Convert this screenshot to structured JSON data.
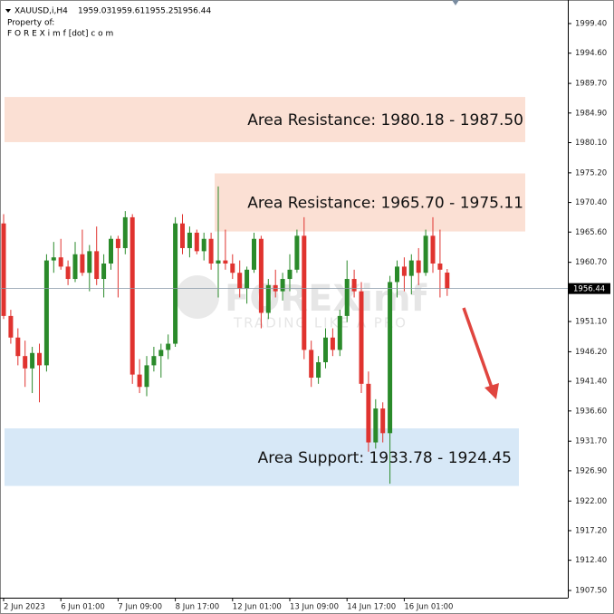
{
  "chart_data": {
    "type": "candlestick",
    "symbol": "XAUUSD,i,H4",
    "property_label": "Property of:",
    "property_value": "F O R E X i m f [dot] c o m",
    "watermark": {
      "logo": "FOREXimf",
      "tagline": "TRADING LIKE A PRO"
    },
    "up_color": "#2a8a2a",
    "down_color": "#e0332f",
    "categories": [
      "2 Jun 2023",
      null,
      null,
      null,
      null,
      null,
      null,
      null,
      "6 Jun 01:00",
      null,
      null,
      null,
      null,
      null,
      null,
      null,
      "7 Jun 09:00",
      null,
      null,
      null,
      null,
      null,
      null,
      null,
      "8 Jun 17:00",
      null,
      null,
      null,
      null,
      null,
      null,
      null,
      "12 Jun 01:00",
      null,
      null,
      null,
      null,
      null,
      null,
      null,
      "13 Jun 09:00",
      null,
      null,
      null,
      null,
      null,
      null,
      null,
      "14 Jun 17:00",
      null,
      null,
      null,
      null,
      null,
      null,
      null,
      "16 Jun 01:00",
      null,
      null,
      null,
      null,
      null,
      null
    ],
    "ohlc": [
      [
        1967.0,
        1968.5,
        1951.5,
        1952.0
      ],
      [
        1952.0,
        1953.0,
        1947.5,
        1948.5
      ],
      [
        1948.5,
        1950.0,
        1944.0,
        1945.5
      ],
      [
        1945.5,
        1948.0,
        1940.5,
        1943.5
      ],
      [
        1943.5,
        1947.0,
        1939.5,
        1946.0
      ],
      [
        1946.0,
        1947.5,
        1938.0,
        1944.0
      ],
      [
        1944.0,
        1962.0,
        1943.0,
        1961.0
      ],
      [
        1961.0,
        1964.0,
        1959.0,
        1961.5
      ],
      [
        1961.5,
        1964.5,
        1959.5,
        1960.0
      ],
      [
        1960.0,
        1961.0,
        1957.0,
        1958.0
      ],
      [
        1958.0,
        1964.0,
        1957.5,
        1962.0
      ],
      [
        1962.0,
        1966.0,
        1958.5,
        1959.0
      ],
      [
        1959.0,
        1963.5,
        1956.0,
        1962.5
      ],
      [
        1962.5,
        1966.5,
        1957.0,
        1958.0
      ],
      [
        1958.0,
        1962.0,
        1955.0,
        1960.5
      ],
      [
        1960.5,
        1965.0,
        1959.5,
        1964.5
      ],
      [
        1964.5,
        1965.0,
        1955.0,
        1963.0
      ],
      [
        1963.0,
        1969.0,
        1962.0,
        1968.0
      ],
      [
        1968.0,
        1968.5,
        1941.0,
        1942.5
      ],
      [
        1942.5,
        1945.0,
        1939.5,
        1940.5
      ],
      [
        1940.5,
        1945.5,
        1939.0,
        1944.0
      ],
      [
        1944.0,
        1947.0,
        1943.0,
        1945.5
      ],
      [
        1945.5,
        1947.5,
        1942.0,
        1946.5
      ],
      [
        1946.5,
        1949.0,
        1945.0,
        1947.5
      ],
      [
        1947.5,
        1968.0,
        1947.0,
        1967.0
      ],
      [
        1967.0,
        1968.5,
        1962.0,
        1963.0
      ],
      [
        1963.0,
        1966.5,
        1961.5,
        1965.5
      ],
      [
        1965.5,
        1966.0,
        1962.0,
        1962.5
      ],
      [
        1962.5,
        1965.5,
        1961.0,
        1964.5
      ],
      [
        1964.5,
        1965.5,
        1959.5,
        1960.5
      ],
      [
        1960.5,
        1973.0,
        1955.0,
        1961.0
      ],
      [
        1961.0,
        1966.0,
        1959.5,
        1960.5
      ],
      [
        1960.5,
        1962.0,
        1958.0,
        1959.0
      ],
      [
        1959.0,
        1961.0,
        1955.0,
        1956.5
      ],
      [
        1956.5,
        1960.0,
        1954.0,
        1959.5
      ],
      [
        1959.5,
        1965.5,
        1959.0,
        1964.5
      ],
      [
        1964.5,
        1965.0,
        1950.0,
        1952.5
      ],
      [
        1952.5,
        1958.0,
        1951.5,
        1957.0
      ],
      [
        1957.0,
        1959.5,
        1955.0,
        1956.0
      ],
      [
        1956.0,
        1959.0,
        1954.5,
        1958.0
      ],
      [
        1958.0,
        1962.0,
        1956.0,
        1959.5
      ],
      [
        1959.5,
        1966.0,
        1959.0,
        1965.0
      ],
      [
        1965.0,
        1968.0,
        1945.0,
        1946.5
      ],
      [
        1946.5,
        1948.0,
        1940.5,
        1942.0
      ],
      [
        1942.0,
        1945.5,
        1941.0,
        1944.5
      ],
      [
        1944.5,
        1950.0,
        1943.5,
        1948.5
      ],
      [
        1948.5,
        1950.0,
        1945.5,
        1946.5
      ],
      [
        1946.5,
        1953.0,
        1945.5,
        1952.0
      ],
      [
        1952.0,
        1961.0,
        1951.0,
        1958.0
      ],
      [
        1958.0,
        1959.5,
        1955.0,
        1956.0
      ],
      [
        1956.0,
        1957.5,
        1939.5,
        1941.0
      ],
      [
        1941.0,
        1943.0,
        1930.0,
        1931.5
      ],
      [
        1931.5,
        1938.5,
        1930.5,
        1937.0
      ],
      [
        1937.0,
        1938.0,
        1931.5,
        1933.0
      ],
      [
        1933.0,
        1958.5,
        1924.8,
        1957.5
      ],
      [
        1957.5,
        1961.0,
        1955.0,
        1960.0
      ],
      [
        1960.0,
        1961.5,
        1956.0,
        1958.5
      ],
      [
        1958.5,
        1962.0,
        1955.5,
        1961.0
      ],
      [
        1961.0,
        1963.0,
        1957.0,
        1959.0
      ],
      [
        1959.0,
        1966.0,
        1958.5,
        1965.0
      ],
      [
        1965.0,
        1968.0,
        1959.0,
        1960.5
      ],
      [
        1960.5,
        1966.0,
        1955.0,
        1959.5
      ],
      [
        1959.03,
        1959.61,
        1955.25,
        1956.44
      ]
    ],
    "zones": [
      {
        "label": "Area Resistance: 1980.18 - 1987.50",
        "low": 1980.18,
        "high": 1987.5,
        "color": "#fbe0d4"
      },
      {
        "label": "Area Resistance: 1965.70 - 1975.11",
        "low": 1965.7,
        "high": 1975.11,
        "color": "#fbe0d4"
      },
      {
        "label": "Area Support: 1933.78 - 1924.45",
        "low": 1924.45,
        "high": 1933.78,
        "color": "#d7e8f7"
      }
    ],
    "ylim": [
      1906.33,
      2003.22
    ],
    "yticks": [
      {
        "value": 1999.4,
        "label": "1999.40"
      },
      {
        "value": 1994.6,
        "label": "1994.60"
      },
      {
        "value": 1989.7,
        "label": "1989.70"
      },
      {
        "value": 1984.9,
        "label": "1984.90"
      },
      {
        "value": 1980.1,
        "label": "1980.10"
      },
      {
        "value": 1975.2,
        "label": "1975.20"
      },
      {
        "value": 1970.4,
        "label": "1970.40"
      },
      {
        "value": 1965.6,
        "label": "1965.60"
      },
      {
        "value": 1960.7,
        "label": "1960.70"
      },
      {
        "value": 1951.1,
        "label": "1951.10"
      },
      {
        "value": 1946.2,
        "label": "1946.20"
      },
      {
        "value": 1941.4,
        "label": "1941.40"
      },
      {
        "value": 1936.6,
        "label": "1936.60"
      },
      {
        "value": 1931.7,
        "label": "1931.70"
      },
      {
        "value": 1926.9,
        "label": "1926.90"
      },
      {
        "value": 1922,
        "label": "1922.00"
      },
      {
        "value": 1917.2,
        "label": "1917.20"
      },
      {
        "value": 1912.4,
        "label": "1912.40"
      },
      {
        "value": 1907.5,
        "label": "1907.50"
      }
    ]
  }
}
